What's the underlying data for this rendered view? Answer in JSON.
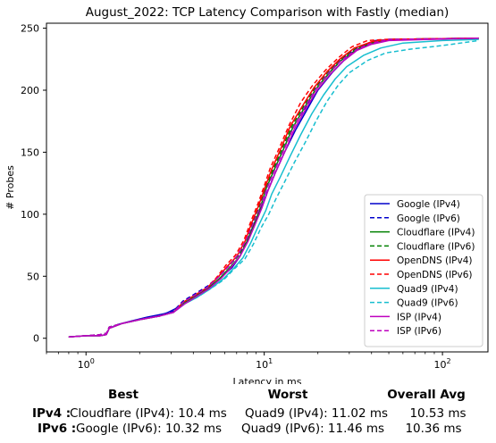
{
  "chart_data": {
    "type": "line",
    "title": "August_2022: TCP Latency Comparison with Fastly (median)",
    "xlabel": "Latency in ms",
    "ylabel": "# Probes",
    "xscale": "log",
    "xlim": [
      0.6,
      180
    ],
    "ylim": [
      -11,
      254
    ],
    "x_ticks": [
      1,
      10,
      100
    ],
    "x_tick_labels": [
      "10^0",
      "10^1",
      "10^2"
    ],
    "y_ticks": [
      0,
      50,
      100,
      150,
      200,
      250
    ],
    "grid": false,
    "legend_position": "lower right",
    "series": [
      {
        "name": "Google (IPv4)",
        "color": "#0000cc",
        "dash": "solid",
        "points": [
          [
            0.8,
            1
          ],
          [
            1.0,
            2
          ],
          [
            1.2,
            2
          ],
          [
            1.3,
            3
          ],
          [
            1.35,
            8
          ],
          [
            1.5,
            11
          ],
          [
            1.8,
            14
          ],
          [
            2.2,
            17
          ],
          [
            2.8,
            20
          ],
          [
            3.3,
            25
          ],
          [
            3.7,
            31
          ],
          [
            4.2,
            34
          ],
          [
            5.0,
            41
          ],
          [
            5.8,
            50
          ],
          [
            6.6,
            57
          ],
          [
            7.3,
            66
          ],
          [
            8.0,
            78
          ],
          [
            8.8,
            93
          ],
          [
            9.6,
            104
          ],
          [
            10.4,
            118
          ],
          [
            11.5,
            133
          ],
          [
            13.0,
            150
          ],
          [
            15.0,
            168
          ],
          [
            17.5,
            185
          ],
          [
            20.0,
            200
          ],
          [
            24.0,
            214
          ],
          [
            28.0,
            224
          ],
          [
            35.0,
            235
          ],
          [
            42.0,
            240
          ],
          [
            55.0,
            241
          ],
          [
            160.0,
            242
          ]
        ]
      },
      {
        "name": "Google (IPv6)",
        "color": "#0000cc",
        "dash": "dashed",
        "points": [
          [
            0.8,
            1
          ],
          [
            1.0,
            2
          ],
          [
            1.2,
            3
          ],
          [
            1.3,
            4
          ],
          [
            1.35,
            9
          ],
          [
            1.6,
            12
          ],
          [
            2.0,
            15
          ],
          [
            2.5,
            18
          ],
          [
            3.1,
            22
          ],
          [
            3.5,
            30
          ],
          [
            4.0,
            35
          ],
          [
            4.8,
            42
          ],
          [
            5.6,
            50
          ],
          [
            6.4,
            59
          ],
          [
            7.2,
            67
          ],
          [
            8.0,
            79
          ],
          [
            8.7,
            94
          ],
          [
            9.5,
            106
          ],
          [
            10.3,
            120
          ],
          [
            11.3,
            135
          ],
          [
            12.8,
            152
          ],
          [
            14.5,
            170
          ],
          [
            17.0,
            186
          ],
          [
            19.5,
            201
          ],
          [
            23.0,
            214
          ],
          [
            27.0,
            225
          ],
          [
            33.0,
            234
          ],
          [
            40.0,
            239
          ],
          [
            50.0,
            241
          ],
          [
            160.0,
            242
          ]
        ]
      },
      {
        "name": "Cloudflare (IPv4)",
        "color": "#008000",
        "dash": "solid",
        "points": [
          [
            0.8,
            1
          ],
          [
            1.0,
            2
          ],
          [
            1.2,
            2
          ],
          [
            1.3,
            3
          ],
          [
            1.35,
            8
          ],
          [
            1.6,
            12
          ],
          [
            2.0,
            15
          ],
          [
            2.6,
            18
          ],
          [
            3.1,
            21
          ],
          [
            3.5,
            28
          ],
          [
            4.0,
            33
          ],
          [
            4.8,
            40
          ],
          [
            5.6,
            48
          ],
          [
            6.5,
            58
          ],
          [
            7.3,
            66
          ],
          [
            8.0,
            78
          ],
          [
            8.8,
            92
          ],
          [
            9.5,
            105
          ],
          [
            10.2,
            120
          ],
          [
            11.3,
            135
          ],
          [
            12.8,
            152
          ],
          [
            14.5,
            170
          ],
          [
            17.0,
            187
          ],
          [
            19.5,
            201
          ],
          [
            23.5,
            215
          ],
          [
            27.0,
            224
          ],
          [
            33.0,
            233
          ],
          [
            40.0,
            238
          ],
          [
            50.0,
            241
          ],
          [
            160.0,
            242
          ]
        ]
      },
      {
        "name": "Cloudflare (IPv6)",
        "color": "#008000",
        "dash": "dashed",
        "points": [
          [
            0.8,
            1
          ],
          [
            1.0,
            2
          ],
          [
            1.2,
            3
          ],
          [
            1.3,
            4
          ],
          [
            1.35,
            9
          ],
          [
            1.6,
            12
          ],
          [
            2.0,
            15
          ],
          [
            2.6,
            18
          ],
          [
            3.1,
            21
          ],
          [
            3.5,
            29
          ],
          [
            4.0,
            34
          ],
          [
            4.8,
            41
          ],
          [
            5.5,
            49
          ],
          [
            6.3,
            58
          ],
          [
            7.2,
            67
          ],
          [
            8.0,
            79
          ],
          [
            8.6,
            93
          ],
          [
            9.4,
            106
          ],
          [
            10.1,
            121
          ],
          [
            11.2,
            136
          ],
          [
            12.6,
            153
          ],
          [
            14.3,
            171
          ],
          [
            16.8,
            188
          ],
          [
            19.3,
            202
          ],
          [
            23.0,
            215
          ],
          [
            27.0,
            225
          ],
          [
            33.0,
            234
          ],
          [
            40.0,
            239
          ],
          [
            50.0,
            241
          ],
          [
            160.0,
            242
          ]
        ]
      },
      {
        "name": "OpenDNS (IPv4)",
        "color": "#ff0000",
        "dash": "solid",
        "points": [
          [
            0.8,
            1
          ],
          [
            1.0,
            2
          ],
          [
            1.2,
            2
          ],
          [
            1.3,
            3
          ],
          [
            1.35,
            8
          ],
          [
            1.6,
            12
          ],
          [
            2.0,
            15
          ],
          [
            2.6,
            18
          ],
          [
            3.1,
            21
          ],
          [
            3.5,
            29
          ],
          [
            4.0,
            34
          ],
          [
            4.8,
            41
          ],
          [
            5.4,
            48
          ],
          [
            6.2,
            58
          ],
          [
            7.0,
            66
          ],
          [
            7.8,
            78
          ],
          [
            8.5,
            93
          ],
          [
            9.3,
            107
          ],
          [
            10.0,
            120
          ],
          [
            11.0,
            136
          ],
          [
            12.4,
            153
          ],
          [
            14.0,
            171
          ],
          [
            16.5,
            188
          ],
          [
            19.0,
            202
          ],
          [
            22.5,
            215
          ],
          [
            26.5,
            225
          ],
          [
            32.0,
            234
          ],
          [
            40.0,
            239
          ],
          [
            50.0,
            241
          ],
          [
            160.0,
            242
          ]
        ]
      },
      {
        "name": "OpenDNS (IPv6)",
        "color": "#ff0000",
        "dash": "dashed",
        "points": [
          [
            0.8,
            1
          ],
          [
            1.0,
            2
          ],
          [
            1.2,
            3
          ],
          [
            1.3,
            4
          ],
          [
            1.35,
            9
          ],
          [
            1.6,
            12
          ],
          [
            2.0,
            15
          ],
          [
            2.6,
            18
          ],
          [
            3.1,
            21
          ],
          [
            3.5,
            29
          ],
          [
            4.0,
            34
          ],
          [
            4.8,
            41
          ],
          [
            5.4,
            49
          ],
          [
            6.1,
            59
          ],
          [
            6.9,
            67
          ],
          [
            7.7,
            79
          ],
          [
            8.4,
            94
          ],
          [
            9.2,
            108
          ],
          [
            9.9,
            121
          ],
          [
            10.8,
            137
          ],
          [
            12.2,
            154
          ],
          [
            13.8,
            172
          ],
          [
            16.0,
            190
          ],
          [
            18.5,
            203
          ],
          [
            22.0,
            216
          ],
          [
            26.0,
            226
          ],
          [
            31.0,
            235
          ],
          [
            38.0,
            240
          ],
          [
            48.0,
            241
          ],
          [
            160.0,
            242
          ]
        ]
      },
      {
        "name": "Quad9 (IPv4)",
        "color": "#17becf",
        "dash": "solid",
        "points": [
          [
            0.8,
            1
          ],
          [
            1.0,
            2
          ],
          [
            1.2,
            2
          ],
          [
            1.3,
            3
          ],
          [
            1.35,
            8
          ],
          [
            1.6,
            12
          ],
          [
            2.0,
            15
          ],
          [
            2.6,
            18
          ],
          [
            3.1,
            21
          ],
          [
            3.6,
            28
          ],
          [
            4.2,
            33
          ],
          [
            5.0,
            40
          ],
          [
            5.9,
            48
          ],
          [
            6.8,
            57
          ],
          [
            7.6,
            65
          ],
          [
            8.4,
            77
          ],
          [
            9.3,
            91
          ],
          [
            10.2,
            103
          ],
          [
            11.0,
            116
          ],
          [
            12.3,
            130
          ],
          [
            14.0,
            147
          ],
          [
            16.0,
            164
          ],
          [
            18.5,
            181
          ],
          [
            21.5,
            196
          ],
          [
            25.0,
            209
          ],
          [
            29.0,
            219
          ],
          [
            36.0,
            228
          ],
          [
            45.0,
            234
          ],
          [
            60.0,
            238
          ],
          [
            100.0,
            240
          ],
          [
            160.0,
            241
          ]
        ]
      },
      {
        "name": "Quad9 (IPv6)",
        "color": "#17becf",
        "dash": "dashed",
        "points": [
          [
            0.8,
            1
          ],
          [
            1.0,
            2
          ],
          [
            1.2,
            3
          ],
          [
            1.3,
            4
          ],
          [
            1.35,
            9
          ],
          [
            1.6,
            12
          ],
          [
            2.0,
            15
          ],
          [
            2.6,
            18
          ],
          [
            3.1,
            21
          ],
          [
            3.6,
            28
          ],
          [
            4.2,
            33
          ],
          [
            5.0,
            40
          ],
          [
            5.9,
            47
          ],
          [
            6.8,
            56
          ],
          [
            7.8,
            64
          ],
          [
            8.7,
            76
          ],
          [
            9.6,
            89
          ],
          [
            10.6,
            100
          ],
          [
            11.6,
            112
          ],
          [
            13.0,
            126
          ],
          [
            14.8,
            142
          ],
          [
            17.0,
            158
          ],
          [
            19.5,
            175
          ],
          [
            22.5,
            191
          ],
          [
            26.0,
            204
          ],
          [
            30.0,
            214
          ],
          [
            38.0,
            224
          ],
          [
            48.0,
            230
          ],
          [
            65.0,
            233
          ],
          [
            100.0,
            236
          ],
          [
            160.0,
            240
          ]
        ]
      },
      {
        "name": "ISP (IPv4)",
        "color": "#bf00bf",
        "dash": "solid",
        "points": [
          [
            0.8,
            1
          ],
          [
            1.0,
            2
          ],
          [
            1.2,
            2
          ],
          [
            1.3,
            3
          ],
          [
            1.35,
            8
          ],
          [
            1.6,
            12
          ],
          [
            2.0,
            15
          ],
          [
            2.6,
            18
          ],
          [
            3.1,
            21
          ],
          [
            3.6,
            28
          ],
          [
            4.1,
            33
          ],
          [
            4.9,
            40
          ],
          [
            5.7,
            48
          ],
          [
            6.5,
            57
          ],
          [
            7.3,
            66
          ],
          [
            8.1,
            78
          ],
          [
            8.9,
            92
          ],
          [
            9.7,
            105
          ],
          [
            10.5,
            119
          ],
          [
            11.6,
            134
          ],
          [
            13.1,
            151
          ],
          [
            14.8,
            169
          ],
          [
            17.3,
            186
          ],
          [
            19.8,
            200
          ],
          [
            23.5,
            213
          ],
          [
            27.5,
            223
          ],
          [
            33.0,
            232
          ],
          [
            40.0,
            237
          ],
          [
            50.0,
            240
          ],
          [
            160.0,
            242
          ]
        ]
      },
      {
        "name": "ISP (IPv6)",
        "color": "#bf00bf",
        "dash": "dashed",
        "points": [
          [
            0.8,
            1
          ],
          [
            1.0,
            2
          ],
          [
            1.2,
            3
          ],
          [
            1.3,
            4
          ],
          [
            1.35,
            9
          ],
          [
            1.6,
            12
          ],
          [
            2.0,
            15
          ],
          [
            2.6,
            18
          ],
          [
            3.1,
            21
          ],
          [
            3.5,
            29
          ],
          [
            4.0,
            34
          ],
          [
            4.8,
            41
          ],
          [
            5.5,
            49
          ],
          [
            6.3,
            58
          ],
          [
            7.1,
            67
          ],
          [
            7.9,
            79
          ],
          [
            8.7,
            93
          ],
          [
            9.5,
            106
          ],
          [
            10.3,
            120
          ],
          [
            11.4,
            135
          ],
          [
            12.9,
            152
          ],
          [
            14.6,
            170
          ],
          [
            17.0,
            187
          ],
          [
            19.5,
            201
          ],
          [
            23.0,
            214
          ],
          [
            27.0,
            224
          ],
          [
            33.0,
            233
          ],
          [
            40.0,
            238
          ],
          [
            50.0,
            241
          ],
          [
            160.0,
            242
          ]
        ]
      }
    ]
  },
  "summary": {
    "headers": {
      "best": "Best",
      "worst": "Worst",
      "overall": "Overall Avg"
    },
    "rows": [
      {
        "label": "IPv4 :",
        "best": "Cloudflare (IPv4): 10.4 ms",
        "worst": "Quad9 (IPv4): 11.02 ms",
        "overall": "10.53 ms"
      },
      {
        "label": "IPv6 :",
        "best": "Google (IPv6): 10.32 ms",
        "worst": "Quad9 (IPv6): 11.46 ms",
        "overall": "10.36 ms"
      }
    ]
  }
}
